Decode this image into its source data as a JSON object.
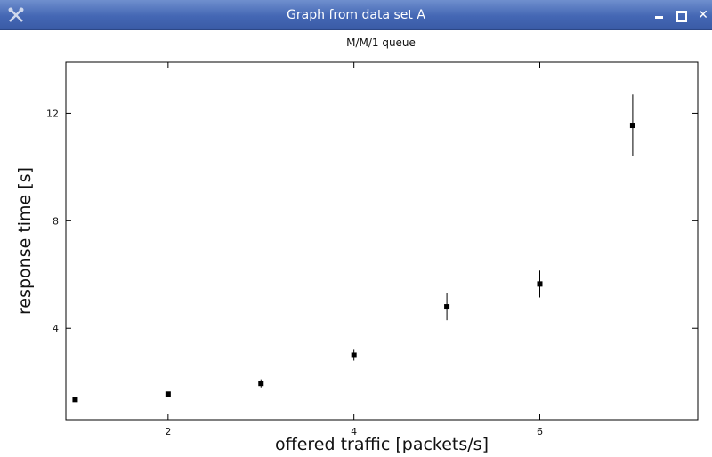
{
  "window": {
    "title": "Graph from data set A",
    "app_icon": "crossed-tools-icon",
    "controls": {
      "minimize": "minimize-icon",
      "maximize": "maximize-icon",
      "close": "close-icon"
    }
  },
  "chart_data": {
    "type": "scatter",
    "title": "M/M/1 queue",
    "xlabel": "offered traffic [packets/s]",
    "ylabel": "response time [s]",
    "xlim": [
      0.9,
      7.7
    ],
    "ylim": [
      0.6,
      13.9
    ],
    "xticks": [
      2,
      4,
      6
    ],
    "yticks": [
      4,
      8,
      12
    ],
    "grid": false,
    "series": [
      {
        "x": [
          1,
          2,
          3,
          4,
          5,
          6,
          7
        ],
        "y": [
          1.35,
          1.55,
          1.95,
          3.0,
          4.8,
          5.65,
          11.55
        ],
        "err": [
          0.0,
          0.05,
          0.15,
          0.2,
          0.5,
          0.5,
          1.15
        ]
      }
    ]
  }
}
